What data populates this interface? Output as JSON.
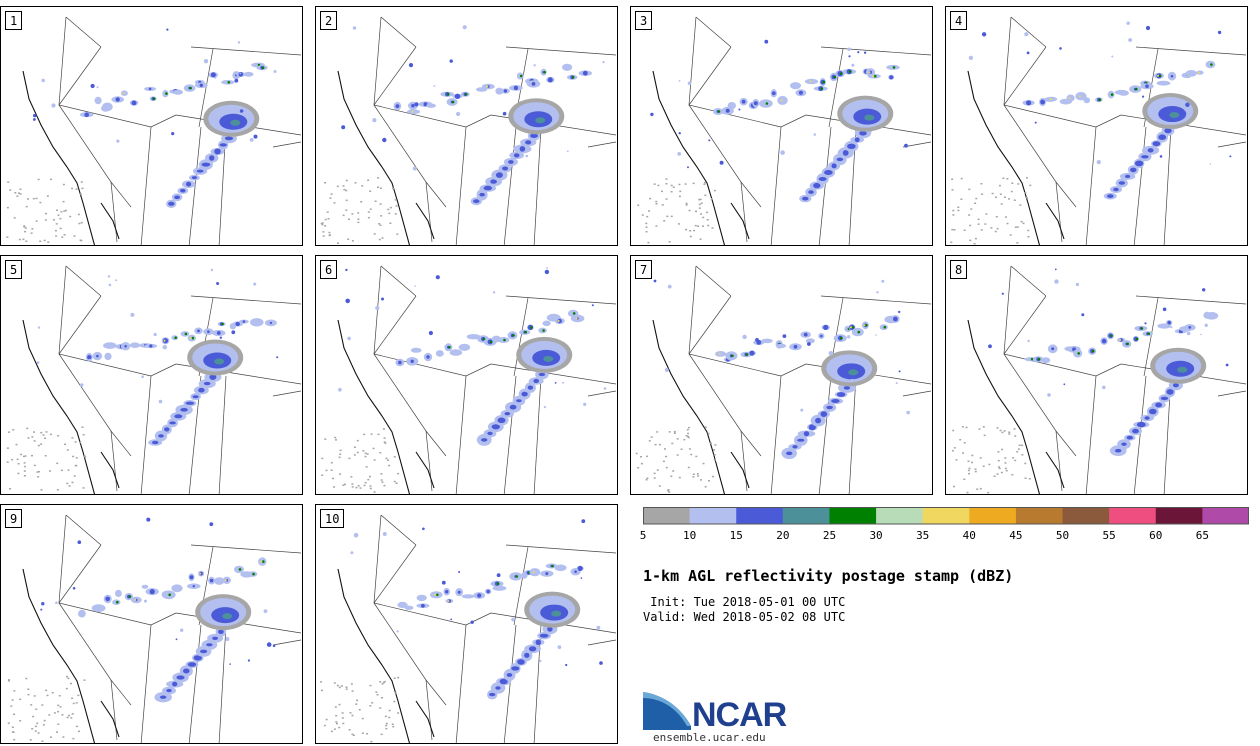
{
  "panels": [
    {
      "label": "1"
    },
    {
      "label": "2"
    },
    {
      "label": "3"
    },
    {
      "label": "4"
    },
    {
      "label": "5"
    },
    {
      "label": "6"
    },
    {
      "label": "7"
    },
    {
      "label": "8"
    },
    {
      "label": "9"
    },
    {
      "label": "10"
    }
  ],
  "colorbar": {
    "colors": [
      "#a6a6a6",
      "#b3bfef",
      "#4b5bd8",
      "#4c9199",
      "#008000",
      "#b8dcb8",
      "#f0d860",
      "#eeaa20",
      "#b87a2e",
      "#8b5a3c",
      "#ee4e80",
      "#6b1638",
      "#b04aa8"
    ],
    "ticks": [
      "5",
      "10",
      "15",
      "20",
      "25",
      "30",
      "35",
      "40",
      "45",
      "50",
      "55",
      "60",
      "65"
    ]
  },
  "title": "1-km AGL reflectivity postage stamp (dBZ)",
  "init_text": " Init: Tue 2018-05-01 00 UTC",
  "valid_text": "Valid: Wed 2018-05-02 08 UTC",
  "logo": {
    "name": "NCAR",
    "url": "ensemble.ucar.edu"
  },
  "colors": {
    "swoosh_dark": "#1f5fa8",
    "swoosh_light": "#6aa8d8",
    "logo_text": "#1f3f8f"
  }
}
